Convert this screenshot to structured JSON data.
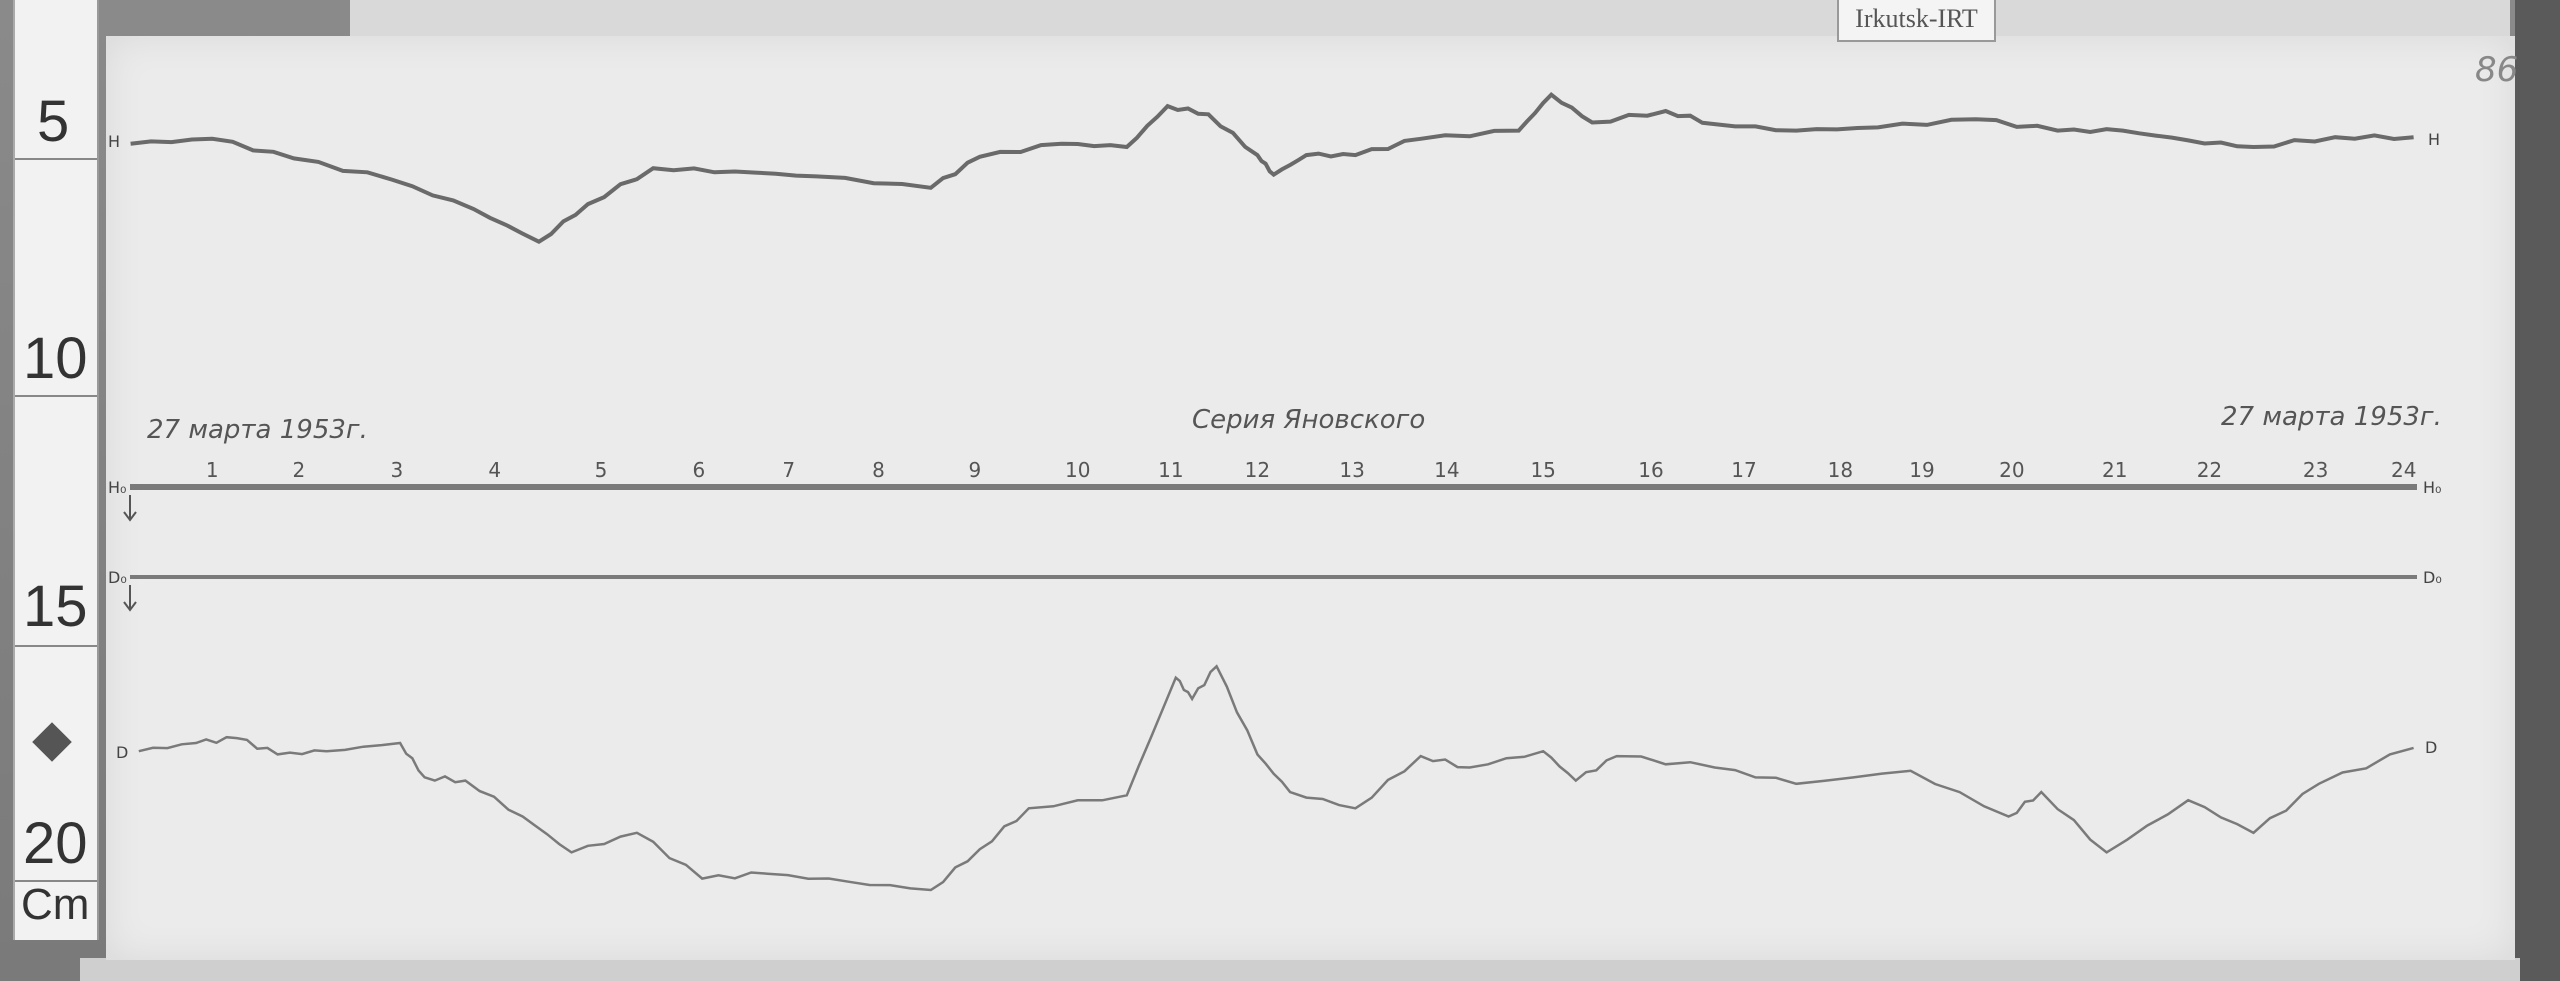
{
  "station_label": "Irkutsk-IRT",
  "sheet_number": "86",
  "ruler": {
    "marks": [
      "5",
      "10",
      "15",
      "20"
    ],
    "unit": "Cm"
  },
  "header": {
    "date_left": "27 марта 1953г.",
    "series": "Серия Яновского",
    "date_right": "27 марта 1953г."
  },
  "traces": {
    "h_label_left": "H",
    "h_label_right": "H",
    "d_label_left": "D",
    "d_label_right": "D",
    "h0_label_left": "H₀",
    "h0_label_right": "H₀",
    "d0_label_left": "D₀",
    "d0_label_right": "D₀"
  },
  "hours": [
    "1",
    "2",
    "3",
    "4",
    "5",
    "6",
    "7",
    "8",
    "9",
    "10",
    "11",
    "12",
    "13",
    "14",
    "15",
    "16",
    "17",
    "18",
    "19",
    "20",
    "21",
    "22",
    "23",
    "24"
  ],
  "colors": {
    "paper": "#ebebeb",
    "trace": "#6a6a6a",
    "baseline": "#7a7a7a"
  }
}
